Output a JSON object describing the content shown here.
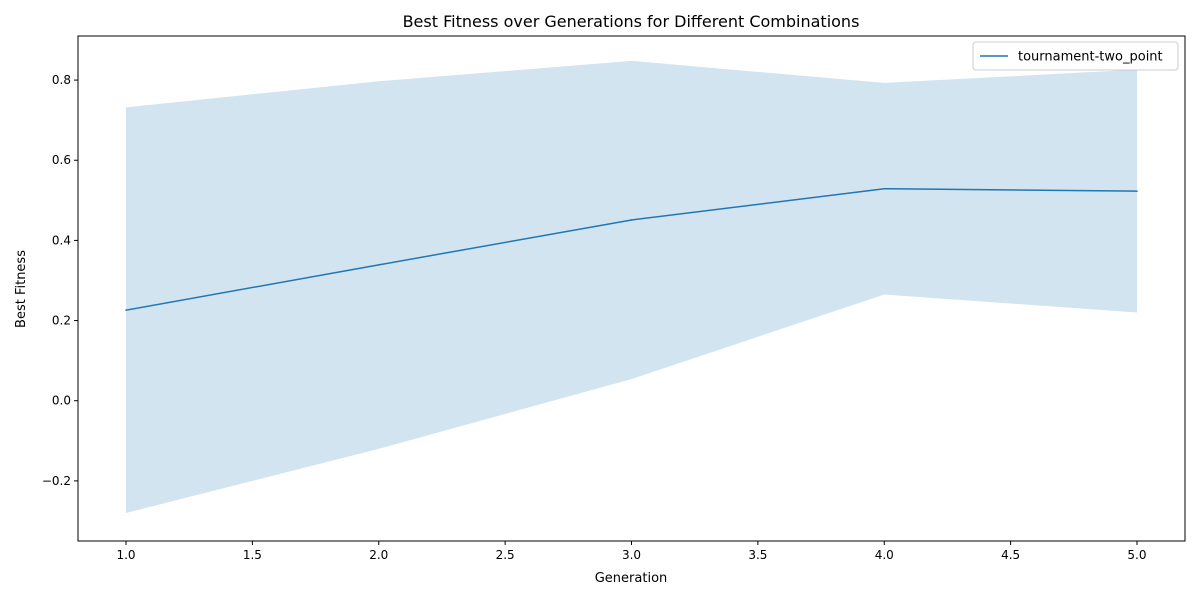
{
  "chart_data": {
    "type": "line",
    "title": "Best Fitness over Generations for Different Combinations",
    "xlabel": "Generation",
    "ylabel": "Best Fitness",
    "xlim": [
      0.81,
      5.19
    ],
    "ylim": [
      -0.35,
      0.91
    ],
    "xticks": [
      1.0,
      1.5,
      2.0,
      2.5,
      3.0,
      3.5,
      4.0,
      4.5,
      5.0
    ],
    "xtick_labels": [
      "1.0",
      "1.5",
      "2.0",
      "2.5",
      "3.0",
      "3.5",
      "4.0",
      "4.5",
      "5.0"
    ],
    "yticks": [
      -0.2,
      0.0,
      0.2,
      0.4,
      0.6,
      0.8
    ],
    "ytick_labels": [
      "−0.2",
      "0.0",
      "0.2",
      "0.4",
      "0.6",
      "0.8"
    ],
    "grid": false,
    "legend_position": "top-right",
    "series": [
      {
        "name": "tournament-two_point",
        "color": "#1f77b4",
        "band_color": "#1f77b4",
        "band_opacity": 0.2,
        "x": [
          1,
          2,
          3,
          4,
          5
        ],
        "y": [
          0.226,
          0.339,
          0.451,
          0.529,
          0.523
        ],
        "y_upper": [
          0.732,
          0.797,
          0.848,
          0.793,
          0.826
        ],
        "y_lower": [
          -0.28,
          -0.12,
          0.054,
          0.265,
          0.22
        ]
      }
    ]
  }
}
